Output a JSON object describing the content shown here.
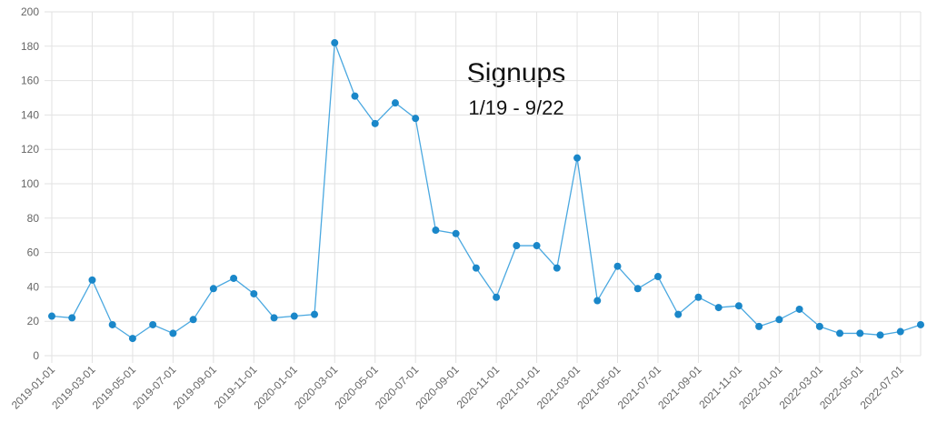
{
  "chart_data": {
    "type": "line",
    "title": "Signups",
    "subtitle": "1/19 - 9/22",
    "categories": [
      "2019-01-01",
      null,
      "2019-03-01",
      null,
      "2019-05-01",
      null,
      "2019-07-01",
      null,
      "2019-09-01",
      null,
      "2019-11-01",
      null,
      "2020-01-01",
      null,
      "2020-03-01",
      null,
      "2020-05-01",
      null,
      "2020-07-01",
      null,
      "2020-09-01",
      null,
      "2020-11-01",
      null,
      "2021-01-01",
      null,
      "2021-03-01",
      null,
      "2021-05-01",
      null,
      "2021-07-01",
      null,
      "2021-09-01",
      null,
      "2021-11-01",
      null,
      "2022-01-01",
      null,
      "2022-03-01",
      null,
      "2022-05-01",
      null,
      "2022-07-01",
      null
    ],
    "values": [
      23,
      22,
      44,
      18,
      10,
      18,
      13,
      21,
      39,
      45,
      36,
      22,
      23,
      24,
      182,
      151,
      135,
      147,
      138,
      73,
      71,
      51,
      34,
      64,
      64,
      51,
      115,
      32,
      52,
      39,
      46,
      24,
      34,
      28,
      29,
      17,
      21,
      27,
      17,
      13,
      13,
      12,
      14,
      18
    ],
    "color": "#1a87c9",
    "ylim": [
      0,
      200
    ],
    "yticks": [
      0,
      20,
      40,
      60,
      80,
      100,
      120,
      140,
      160,
      180,
      200
    ],
    "grid": true
  }
}
